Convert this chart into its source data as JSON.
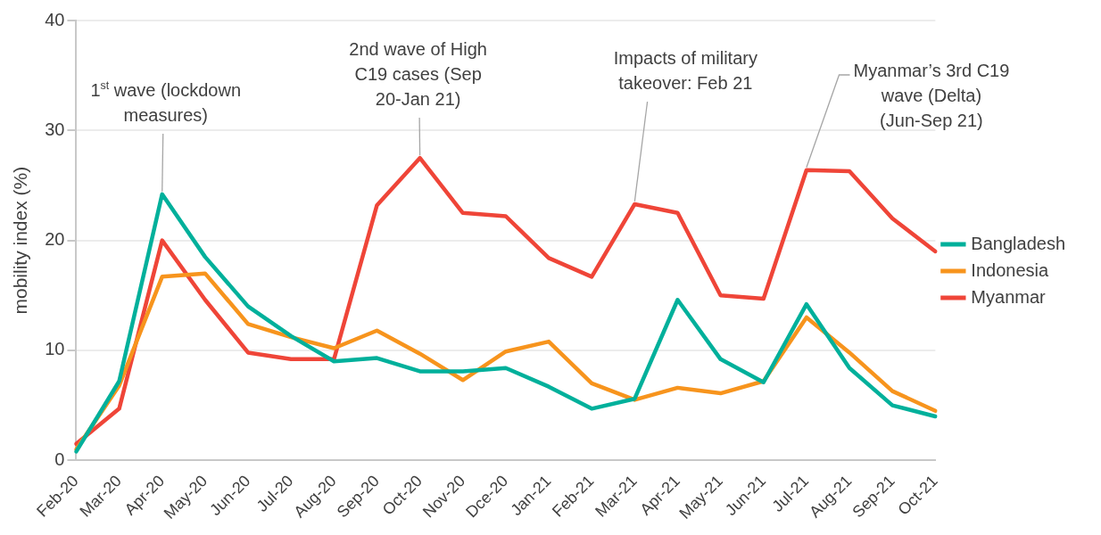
{
  "chart_data": {
    "type": "line",
    "ylabel": "mobility index (%)",
    "categories": [
      "Feb-20",
      "Mar-20",
      "Apr-20",
      "May-20",
      "Jun-20",
      "Jul-20",
      "Aug-20",
      "Sep-20",
      "Oct-20",
      "Nov-20",
      "Dce-20",
      "Jan-21",
      "Feb-21",
      "Mar-21",
      "Apr-21",
      "May-21",
      "Jun-21",
      "Jul-21",
      "Aug-21",
      "Sep-21",
      "Oct-21"
    ],
    "series": [
      {
        "name": "Bangladesh",
        "color": "#00b09b",
        "values": [
          0.8,
          7.2,
          24.2,
          18.5,
          14,
          11.3,
          9,
          9.3,
          8.1,
          8.1,
          8.4,
          6.7,
          4.7,
          5.6,
          14.6,
          9.2,
          7.1,
          14.2,
          8.4,
          5,
          4
        ]
      },
      {
        "name": "Indonesia",
        "color": "#f7941d",
        "values": [
          1,
          6.8,
          16.7,
          17,
          12.4,
          11.2,
          10.2,
          11.8,
          9.7,
          7.3,
          9.9,
          10.8,
          7,
          5.5,
          6.6,
          6.1,
          7.2,
          13,
          9.8,
          6.3,
          4.5
        ]
      },
      {
        "name": "Myanmar",
        "color": "#ef4538",
        "values": [
          1.5,
          4.7,
          20,
          14.6,
          9.8,
          9.2,
          9.2,
          23.2,
          27.5,
          22.5,
          22.2,
          18.4,
          16.7,
          23.3,
          22.5,
          15,
          14.7,
          26.4,
          26.3,
          22,
          19
        ]
      }
    ],
    "ylim": [
      0,
      40
    ],
    "yticks": [
      0,
      10,
      20,
      30,
      40
    ],
    "grid": "y",
    "legend": "right",
    "marker": "none",
    "line_style": "solid",
    "annotations": [
      {
        "text": "1$^{st}$ wave (lockdown measures)",
        "x": "Apr-20",
        "y": 24.2
      },
      {
        "text": "2nd wave of High C19 cases (Sep 20-Jan 21)",
        "x": "Oct-20",
        "y": 27.5
      },
      {
        "text": "Impacts of military takeover: Feb 21",
        "x": "Mar-21",
        "y": 23.3
      },
      {
        "text": "Myanmar’s 3rd C19 wave (Delta) (Jun-Sep 21)",
        "x": "Jul-21",
        "y": 26.4
      }
    ]
  }
}
